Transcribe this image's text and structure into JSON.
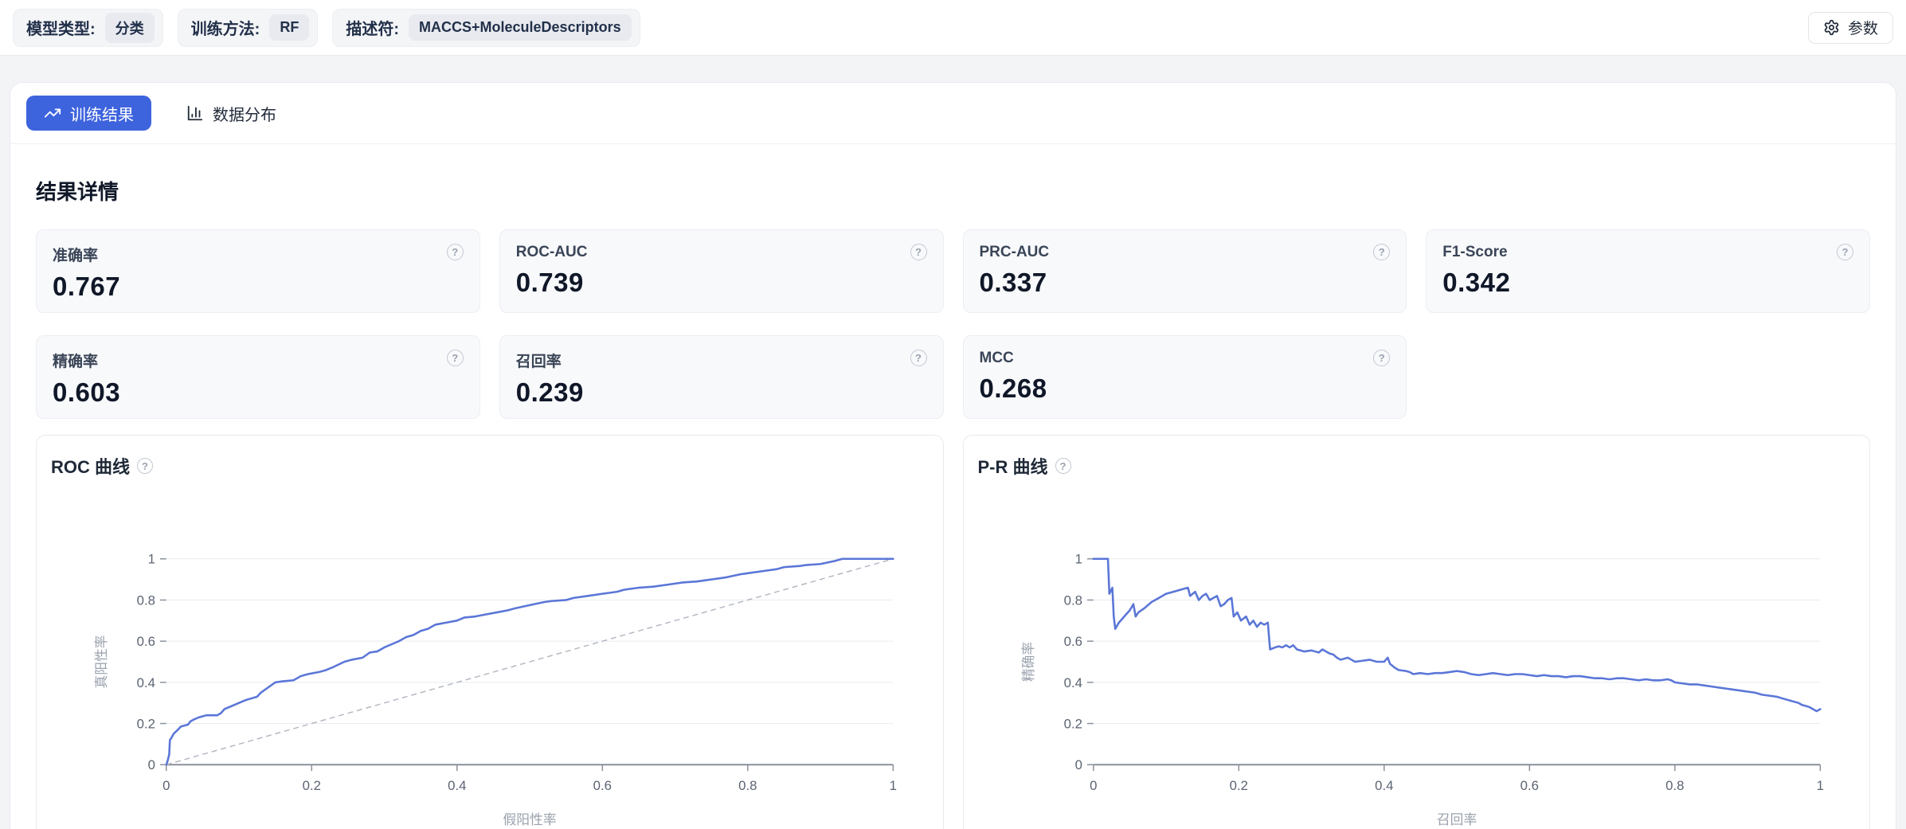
{
  "topbar": {
    "pills": [
      {
        "label": "模型类型:",
        "value": "分类"
      },
      {
        "label": "训练方法:",
        "value": "RF"
      },
      {
        "label": "描述符:",
        "value": "MACCS+MoleculeDescriptors"
      }
    ],
    "params_label": "参数"
  },
  "tabs": [
    {
      "label": "训练结果"
    },
    {
      "label": "数据分布"
    }
  ],
  "section_title": "结果详情",
  "metrics": [
    {
      "label": "准确率",
      "value": "0.767"
    },
    {
      "label": "ROC-AUC",
      "value": "0.739"
    },
    {
      "label": "PRC-AUC",
      "value": "0.337"
    },
    {
      "label": "F1-Score",
      "value": "0.342"
    },
    {
      "label": "精确率",
      "value": "0.603"
    },
    {
      "label": "召回率",
      "value": "0.239"
    },
    {
      "label": "MCC",
      "value": "0.268"
    }
  ],
  "icons": {
    "help": "?"
  },
  "colors": {
    "accent": "#3d63dd",
    "curve": "#5b76d7",
    "grid": "#e9ebf0",
    "axis": "#8a909b",
    "tick_text": "#5b6472",
    "axis_name": "#9aa1ad",
    "diagonal": "#b3b8c2"
  },
  "chart_data": [
    {
      "id": "roc",
      "type": "line",
      "title": "ROC 曲线",
      "xlabel": "假阳性率",
      "ylabel": "真阳性率",
      "xlim": [
        0,
        1
      ],
      "ylim": [
        0,
        1
      ],
      "grid": true,
      "legend_position": "none",
      "ticks": [
        [
          0,
          "0"
        ],
        [
          0.2,
          "0.2"
        ],
        [
          0.4,
          "0.4"
        ],
        [
          0.6,
          "0.6"
        ],
        [
          0.8,
          "0.8"
        ],
        [
          1,
          "1"
        ]
      ],
      "diagonal_reference": true,
      "series": [
        {
          "name": "ROC curve",
          "points": [
            [
              0,
              0
            ],
            [
              0.002,
              0.02
            ],
            [
              0.004,
              0.05
            ],
            [
              0.005,
              0.12
            ],
            [
              0.007,
              0.13
            ],
            [
              0.01,
              0.15
            ],
            [
              0.013,
              0.16
            ],
            [
              0.016,
              0.17
            ],
            [
              0.02,
              0.185
            ],
            [
              0.025,
              0.19
            ],
            [
              0.03,
              0.195
            ],
            [
              0.033,
              0.21
            ],
            [
              0.038,
              0.22
            ],
            [
              0.045,
              0.23
            ],
            [
              0.05,
              0.235
            ],
            [
              0.055,
              0.24
            ],
            [
              0.07,
              0.24
            ],
            [
              0.075,
              0.25
            ],
            [
              0.08,
              0.27
            ],
            [
              0.09,
              0.285
            ],
            [
              0.1,
              0.3
            ],
            [
              0.11,
              0.315
            ],
            [
              0.115,
              0.32
            ],
            [
              0.125,
              0.33
            ],
            [
              0.13,
              0.35
            ],
            [
              0.14,
              0.375
            ],
            [
              0.15,
              0.4
            ],
            [
              0.16,
              0.405
            ],
            [
              0.175,
              0.41
            ],
            [
              0.185,
              0.43
            ],
            [
              0.195,
              0.44
            ],
            [
              0.21,
              0.45
            ],
            [
              0.22,
              0.46
            ],
            [
              0.23,
              0.475
            ],
            [
              0.245,
              0.5
            ],
            [
              0.255,
              0.51
            ],
            [
              0.27,
              0.52
            ],
            [
              0.28,
              0.545
            ],
            [
              0.29,
              0.55
            ],
            [
              0.3,
              0.57
            ],
            [
              0.31,
              0.585
            ],
            [
              0.32,
              0.6
            ],
            [
              0.33,
              0.62
            ],
            [
              0.34,
              0.63
            ],
            [
              0.35,
              0.65
            ],
            [
              0.36,
              0.66
            ],
            [
              0.37,
              0.68
            ],
            [
              0.385,
              0.69
            ],
            [
              0.4,
              0.7
            ],
            [
              0.41,
              0.715
            ],
            [
              0.425,
              0.72
            ],
            [
              0.44,
              0.73
            ],
            [
              0.455,
              0.74
            ],
            [
              0.47,
              0.75
            ],
            [
              0.48,
              0.76
            ],
            [
              0.5,
              0.775
            ],
            [
              0.52,
              0.79
            ],
            [
              0.53,
              0.795
            ],
            [
              0.55,
              0.8
            ],
            [
              0.56,
              0.81
            ],
            [
              0.58,
              0.82
            ],
            [
              0.6,
              0.83
            ],
            [
              0.62,
              0.84
            ],
            [
              0.63,
              0.85
            ],
            [
              0.65,
              0.86
            ],
            [
              0.67,
              0.865
            ],
            [
              0.69,
              0.875
            ],
            [
              0.71,
              0.885
            ],
            [
              0.73,
              0.89
            ],
            [
              0.75,
              0.9
            ],
            [
              0.77,
              0.91
            ],
            [
              0.79,
              0.925
            ],
            [
              0.8,
              0.93
            ],
            [
              0.82,
              0.94
            ],
            [
              0.84,
              0.95
            ],
            [
              0.85,
              0.96
            ],
            [
              0.87,
              0.965
            ],
            [
              0.88,
              0.97
            ],
            [
              0.9,
              0.975
            ],
            [
              0.92,
              0.99
            ],
            [
              0.93,
              1
            ],
            [
              1,
              1
            ]
          ]
        }
      ]
    },
    {
      "id": "pr",
      "type": "line",
      "title": "P-R 曲线",
      "xlabel": "召回率",
      "ylabel": "精确率",
      "xlim": [
        0,
        1
      ],
      "ylim": [
        0,
        1
      ],
      "grid": true,
      "legend_position": "none",
      "ticks": [
        [
          0,
          "0"
        ],
        [
          0.2,
          "0.2"
        ],
        [
          0.4,
          "0.4"
        ],
        [
          0.6,
          "0.6"
        ],
        [
          0.8,
          "0.8"
        ],
        [
          1,
          "1"
        ]
      ],
      "diagonal_reference": false,
      "series": [
        {
          "name": "P-R curve",
          "points": [
            [
              0,
              1
            ],
            [
              0.02,
              1
            ],
            [
              0.022,
              0.83
            ],
            [
              0.026,
              0.86
            ],
            [
              0.028,
              0.72
            ],
            [
              0.03,
              0.66
            ],
            [
              0.035,
              0.69
            ],
            [
              0.04,
              0.71
            ],
            [
              0.045,
              0.73
            ],
            [
              0.05,
              0.75
            ],
            [
              0.055,
              0.78
            ],
            [
              0.058,
              0.72
            ],
            [
              0.062,
              0.74
            ],
            [
              0.07,
              0.76
            ],
            [
              0.08,
              0.79
            ],
            [
              0.09,
              0.81
            ],
            [
              0.1,
              0.83
            ],
            [
              0.11,
              0.84
            ],
            [
              0.12,
              0.85
            ],
            [
              0.13,
              0.86
            ],
            [
              0.133,
              0.82
            ],
            [
              0.14,
              0.84
            ],
            [
              0.145,
              0.8
            ],
            [
              0.15,
              0.82
            ],
            [
              0.155,
              0.83
            ],
            [
              0.16,
              0.8
            ],
            [
              0.165,
              0.81
            ],
            [
              0.17,
              0.82
            ],
            [
              0.175,
              0.77
            ],
            [
              0.18,
              0.78
            ],
            [
              0.185,
              0.8
            ],
            [
              0.19,
              0.81
            ],
            [
              0.193,
              0.72
            ],
            [
              0.198,
              0.74
            ],
            [
              0.203,
              0.7
            ],
            [
              0.21,
              0.72
            ],
            [
              0.215,
              0.68
            ],
            [
              0.22,
              0.7
            ],
            [
              0.225,
              0.67
            ],
            [
              0.23,
              0.69
            ],
            [
              0.235,
              0.68
            ],
            [
              0.24,
              0.69
            ],
            [
              0.243,
              0.56
            ],
            [
              0.25,
              0.57
            ],
            [
              0.255,
              0.575
            ],
            [
              0.26,
              0.57
            ],
            [
              0.265,
              0.58
            ],
            [
              0.27,
              0.57
            ],
            [
              0.275,
              0.58
            ],
            [
              0.28,
              0.56
            ],
            [
              0.285,
              0.555
            ],
            [
              0.29,
              0.55
            ],
            [
              0.3,
              0.555
            ],
            [
              0.305,
              0.55
            ],
            [
              0.31,
              0.545
            ],
            [
              0.315,
              0.56
            ],
            [
              0.32,
              0.55
            ],
            [
              0.325,
              0.54
            ],
            [
              0.33,
              0.535
            ],
            [
              0.335,
              0.52
            ],
            [
              0.34,
              0.51
            ],
            [
              0.35,
              0.52
            ],
            [
              0.355,
              0.51
            ],
            [
              0.36,
              0.5
            ],
            [
              0.37,
              0.505
            ],
            [
              0.38,
              0.51
            ],
            [
              0.39,
              0.5
            ],
            [
              0.4,
              0.5
            ],
            [
              0.405,
              0.52
            ],
            [
              0.408,
              0.49
            ],
            [
              0.415,
              0.47
            ],
            [
              0.42,
              0.46
            ],
            [
              0.43,
              0.455
            ],
            [
              0.435,
              0.45
            ],
            [
              0.44,
              0.44
            ],
            [
              0.45,
              0.445
            ],
            [
              0.46,
              0.44
            ],
            [
              0.47,
              0.445
            ],
            [
              0.48,
              0.445
            ],
            [
              0.49,
              0.45
            ],
            [
              0.5,
              0.455
            ],
            [
              0.51,
              0.45
            ],
            [
              0.52,
              0.44
            ],
            [
              0.53,
              0.435
            ],
            [
              0.54,
              0.44
            ],
            [
              0.55,
              0.445
            ],
            [
              0.56,
              0.44
            ],
            [
              0.57,
              0.435
            ],
            [
              0.58,
              0.44
            ],
            [
              0.59,
              0.44
            ],
            [
              0.6,
              0.435
            ],
            [
              0.61,
              0.43
            ],
            [
              0.62,
              0.435
            ],
            [
              0.63,
              0.43
            ],
            [
              0.64,
              0.43
            ],
            [
              0.65,
              0.425
            ],
            [
              0.66,
              0.43
            ],
            [
              0.67,
              0.43
            ],
            [
              0.68,
              0.425
            ],
            [
              0.69,
              0.42
            ],
            [
              0.7,
              0.42
            ],
            [
              0.71,
              0.415
            ],
            [
              0.72,
              0.42
            ],
            [
              0.73,
              0.42
            ],
            [
              0.74,
              0.415
            ],
            [
              0.75,
              0.41
            ],
            [
              0.76,
              0.415
            ],
            [
              0.77,
              0.41
            ],
            [
              0.78,
              0.41
            ],
            [
              0.79,
              0.415
            ],
            [
              0.795,
              0.41
            ],
            [
              0.8,
              0.4
            ],
            [
              0.81,
              0.395
            ],
            [
              0.82,
              0.39
            ],
            [
              0.83,
              0.39
            ],
            [
              0.84,
              0.385
            ],
            [
              0.85,
              0.38
            ],
            [
              0.86,
              0.375
            ],
            [
              0.87,
              0.37
            ],
            [
              0.88,
              0.365
            ],
            [
              0.89,
              0.36
            ],
            [
              0.9,
              0.355
            ],
            [
              0.91,
              0.35
            ],
            [
              0.92,
              0.34
            ],
            [
              0.93,
              0.335
            ],
            [
              0.94,
              0.33
            ],
            [
              0.95,
              0.32
            ],
            [
              0.96,
              0.31
            ],
            [
              0.97,
              0.3
            ],
            [
              0.975,
              0.29
            ],
            [
              0.98,
              0.285
            ],
            [
              0.985,
              0.28
            ],
            [
              0.99,
              0.27
            ],
            [
              0.995,
              0.26
            ],
            [
              1,
              0.27
            ]
          ]
        }
      ]
    }
  ]
}
